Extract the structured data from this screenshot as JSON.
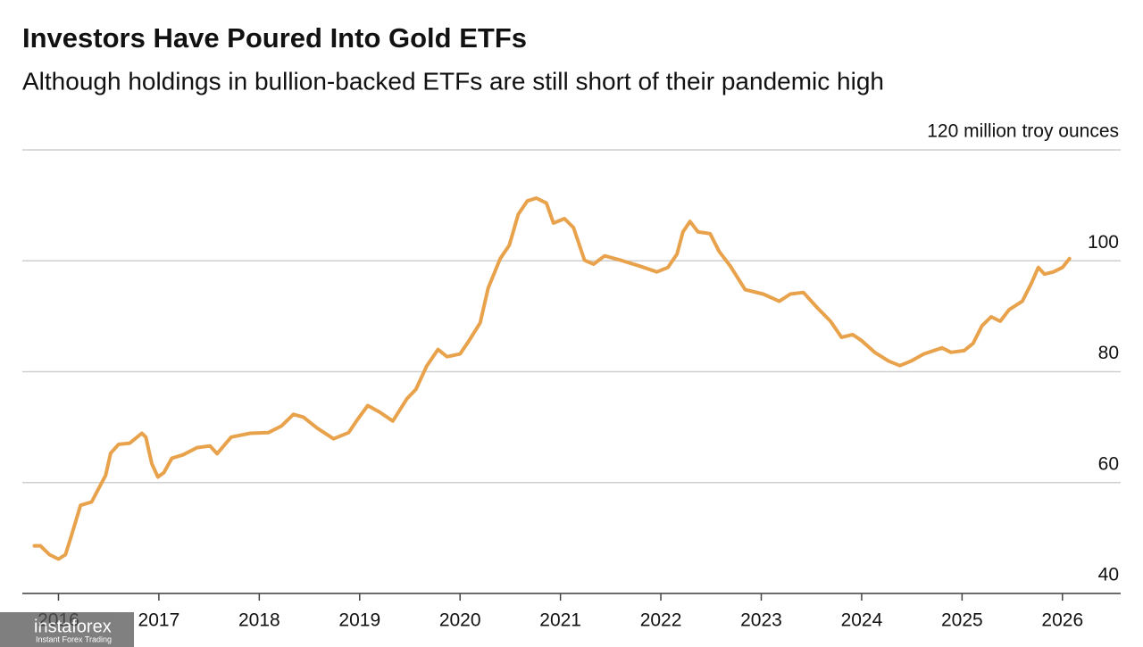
{
  "chart_data": {
    "type": "line",
    "title": "Investors Have Poured Into Gold ETFs",
    "subtitle": "Although holdings in bullion-backed ETFs are still short of their pandemic high",
    "watermark": "instaforex",
    "watermark_subtitle": "Instant Forex Trading",
    "xlim": [
      2015.64,
      2026.58
    ],
    "xticks": [
      2016,
      2017,
      2018,
      2019,
      2020,
      2021,
      2022,
      2023,
      2024,
      2025,
      2026
    ],
    "ylim": [
      40,
      120
    ],
    "yticks": [
      40,
      60,
      80,
      100,
      {
        "value": 120,
        "label": "120 million troy ounces"
      }
    ],
    "grid": true,
    "x": [
      2015.76,
      2015.82,
      2015.91,
      2016.0,
      2016.07,
      2016.13,
      2016.22,
      2016.33,
      2016.4,
      2016.47,
      2016.52,
      2016.6,
      2016.71,
      2016.83,
      2016.87,
      2016.93,
      2016.99,
      2017.05,
      2017.13,
      2017.24,
      2017.38,
      2017.51,
      2017.58,
      2017.72,
      2017.91,
      2018.09,
      2018.22,
      2018.34,
      2018.44,
      2018.58,
      2018.74,
      2018.89,
      2018.98,
      2019.08,
      2019.2,
      2019.33,
      2019.47,
      2019.56,
      2019.67,
      2019.78,
      2019.87,
      2020.0,
      2020.09,
      2020.2,
      2020.28,
      2020.4,
      2020.49,
      2020.58,
      2020.67,
      2020.76,
      2020.86,
      2020.93,
      2021.04,
      2021.13,
      2021.24,
      2021.33,
      2021.44,
      2021.6,
      2021.78,
      2021.96,
      2022.07,
      2022.16,
      2022.22,
      2022.29,
      2022.37,
      2022.49,
      2022.58,
      2022.69,
      2022.84,
      2023.02,
      2023.18,
      2023.29,
      2023.42,
      2023.56,
      2023.69,
      2023.8,
      2023.91,
      2024.0,
      2024.13,
      2024.27,
      2024.38,
      2024.49,
      2024.62,
      2024.8,
      2024.89,
      2025.02,
      2025.11,
      2025.2,
      2025.29,
      2025.38,
      2025.47,
      2025.6,
      2025.69,
      2025.76,
      2025.82,
      2025.91,
      2026.0,
      2026.07
    ],
    "series": [
      {
        "color": "#e9a24c",
        "values": [
          48.6,
          48.6,
          47.0,
          46.2,
          47.0,
          50.5,
          55.9,
          56.5,
          58.9,
          61.3,
          65.3,
          66.9,
          67.1,
          68.9,
          68.2,
          63.4,
          61.0,
          61.8,
          64.4,
          65.0,
          66.3,
          66.6,
          65.2,
          68.2,
          68.9,
          69.0,
          70.2,
          72.3,
          71.8,
          69.8,
          67.9,
          69.0,
          71.4,
          73.9,
          72.7,
          71.1,
          75.1,
          76.8,
          81.1,
          84.0,
          82.7,
          83.2,
          85.6,
          88.8,
          95.1,
          100.4,
          102.8,
          108.4,
          110.8,
          111.3,
          110.4,
          106.8,
          107.6,
          106.0,
          100.1,
          99.4,
          100.9,
          100.1,
          99.1,
          98.0,
          98.8,
          101.2,
          105.2,
          107.1,
          105.2,
          104.9,
          101.7,
          99.1,
          94.8,
          94.0,
          92.7,
          94.0,
          94.3,
          91.5,
          89.1,
          86.2,
          86.7,
          85.6,
          83.5,
          81.9,
          81.1,
          81.9,
          83.2,
          84.3,
          83.5,
          83.8,
          85.1,
          88.3,
          89.9,
          89.1,
          91.2,
          92.7,
          95.9,
          98.8,
          97.6,
          98.0,
          98.8,
          100.4
        ]
      }
    ]
  }
}
